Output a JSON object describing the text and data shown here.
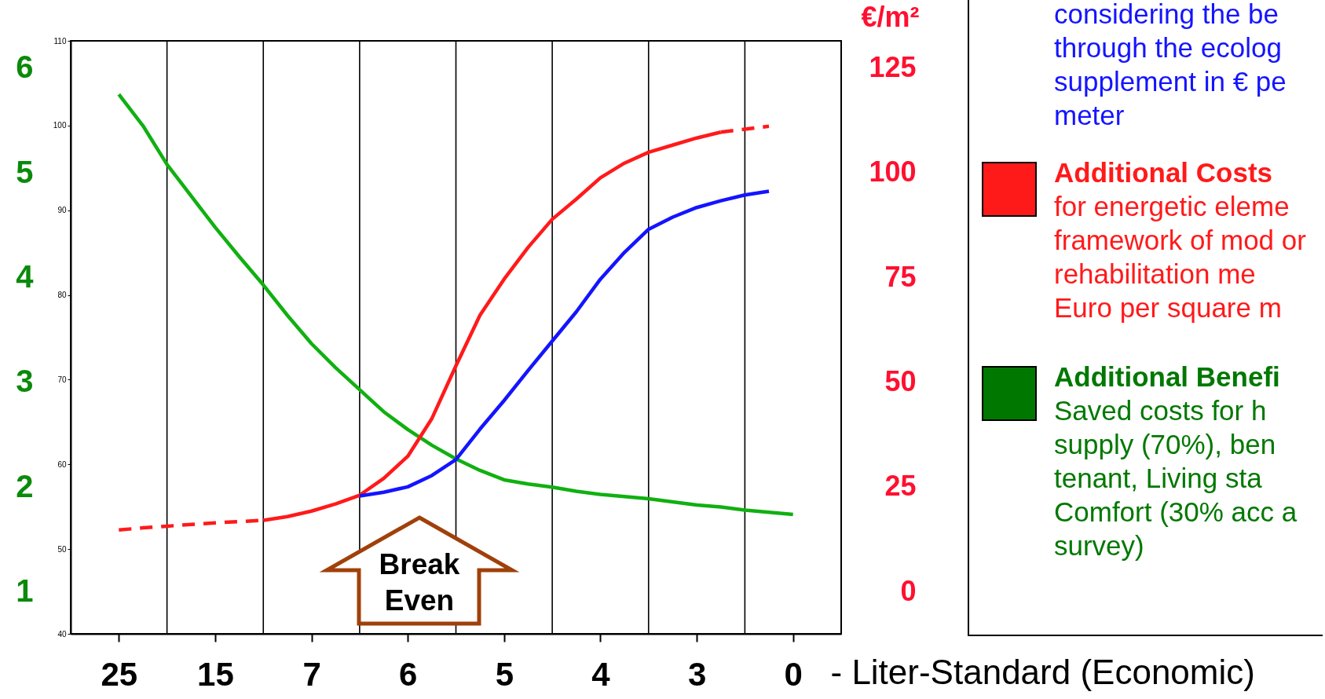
{
  "chart_data": {
    "type": "line",
    "xlabel": "- Liter-Standard (Economic)",
    "y2label": "€/m²",
    "categories": [
      "25",
      null,
      null,
      null,
      "15",
      null,
      null,
      null,
      "7",
      null,
      null,
      null,
      "6",
      null,
      null,
      null,
      "5",
      null,
      null,
      null,
      "4",
      null,
      null,
      null,
      "3",
      null,
      null,
      null,
      "0"
    ],
    "ylim": [
      0.6,
      6.26
    ],
    "yticks": [
      1,
      2,
      3,
      4,
      5,
      6
    ],
    "y2lim": [
      -10.1,
      131.5
    ],
    "y2ticks": [
      0,
      25,
      50,
      75,
      100,
      125
    ],
    "y3lim": [
      40,
      110
    ],
    "y3ticks": [
      40,
      50,
      60,
      70,
      80,
      90,
      100,
      110
    ],
    "grid": "x",
    "series": [
      {
        "color": "#10b010",
        "line_style": "solid",
        "values": [
          5.75,
          5.45,
          5.08,
          4.78,
          4.48,
          4.2,
          3.93,
          3.64,
          3.37,
          3.14,
          2.93,
          2.72,
          2.55,
          2.4,
          2.27,
          2.16,
          2.07,
          2.03,
          2.0,
          1.96,
          1.93,
          1.91,
          1.89,
          1.86,
          1.83,
          1.81,
          1.78,
          1.76,
          1.74
        ]
      },
      {
        "color": "#ff1a1a",
        "line_style": "dashed",
        "axis": "y2",
        "values": [
          14.7,
          15.2,
          15.6,
          16.0,
          16.4,
          16.7,
          17.0,
          null,
          null,
          null,
          null,
          null,
          null,
          null,
          null,
          null,
          null,
          null,
          null,
          null,
          null,
          null,
          null,
          null,
          null,
          null,
          null,
          null,
          null
        ]
      },
      {
        "color": "#ff1a1a",
        "line_style": "solid",
        "axis": "y2",
        "values": [
          null,
          null,
          null,
          null,
          null,
          null,
          17.0,
          17.9,
          19.2,
          20.9,
          23.0,
          27.0,
          32.3,
          41.3,
          53.9,
          66.0,
          74.6,
          82.2,
          88.9,
          93.7,
          98.8,
          102.3,
          104.9,
          106.6,
          108.3,
          109.7,
          null,
          null,
          null
        ]
      },
      {
        "color": "#ff1a1a",
        "line_style": "dashed",
        "axis": "y2",
        "values": [
          null,
          null,
          null,
          null,
          null,
          null,
          null,
          null,
          null,
          null,
          null,
          null,
          null,
          null,
          null,
          null,
          null,
          null,
          null,
          null,
          null,
          null,
          null,
          null,
          null,
          109.7,
          110.4,
          111.1,
          null
        ]
      },
      {
        "color": "#1414ff",
        "line_style": "solid",
        "axis": "y2",
        "values": [
          null,
          null,
          null,
          null,
          null,
          null,
          null,
          null,
          null,
          null,
          22.8,
          23.7,
          25.0,
          27.7,
          31.5,
          38.8,
          45.6,
          52.8,
          59.8,
          66.8,
          74.6,
          81.0,
          86.5,
          89.4,
          91.7,
          93.3,
          94.7,
          95.6,
          null
        ]
      }
    ],
    "annotations": [
      "Break Even",
      "considering the be through the ecolog supplement in € pe meter",
      "Additional Costs",
      "for energetic eleme framework of mod or rehabilitation me Euro per square m",
      "Additional Benefi",
      "Saved costs for h supply (70%), ben tenant, Living sta Comfort (30% acc a survey)"
    ]
  }
}
